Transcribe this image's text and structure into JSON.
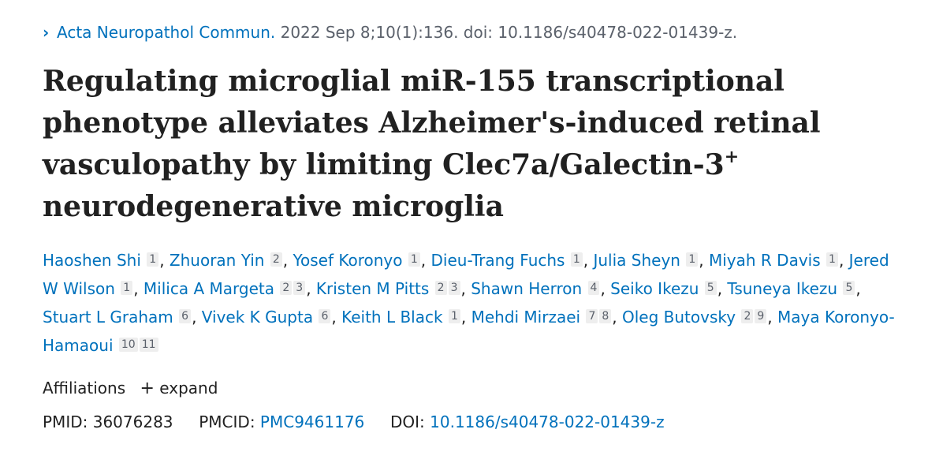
{
  "citation": {
    "journal": "Acta Neuropathol Commun.",
    "details": "2022 Sep 8;10(1):136. doi: 10.1186/s40478-022-01439-z."
  },
  "title": {
    "line1": "Regulating microglial miR-155 transcriptional",
    "line2": "phenotype alleviates Alzheimer's-induced retinal",
    "line3": "vasculopathy by limiting Clec7a/Galectin-3",
    "sup": "+",
    "line4": "neurodegenerative microglia"
  },
  "authors": [
    {
      "name": "Haoshen Shi",
      "refs": [
        "1"
      ]
    },
    {
      "name": "Zhuoran Yin",
      "refs": [
        "2"
      ]
    },
    {
      "name": "Yosef Koronyo",
      "refs": [
        "1"
      ]
    },
    {
      "name": "Dieu-Trang Fuchs",
      "refs": [
        "1"
      ]
    },
    {
      "name": "Julia Sheyn",
      "refs": [
        "1"
      ]
    },
    {
      "name": "Miyah R Davis",
      "refs": [
        "1"
      ]
    },
    {
      "name": "Jered W Wilson",
      "refs": [
        "1"
      ]
    },
    {
      "name": "Milica A Margeta",
      "refs": [
        "2",
        "3"
      ]
    },
    {
      "name": "Kristen M Pitts",
      "refs": [
        "2",
        "3"
      ]
    },
    {
      "name": "Shawn Herron",
      "refs": [
        "4"
      ]
    },
    {
      "name": "Seiko Ikezu",
      "refs": [
        "5"
      ]
    },
    {
      "name": "Tsuneya Ikezu",
      "refs": [
        "5"
      ]
    },
    {
      "name": "Stuart L Graham",
      "refs": [
        "6"
      ]
    },
    {
      "name": "Vivek K Gupta",
      "refs": [
        "6"
      ]
    },
    {
      "name": "Keith L Black",
      "refs": [
        "1"
      ]
    },
    {
      "name": "Mehdi Mirzaei",
      "refs": [
        "7",
        "8"
      ]
    },
    {
      "name": "Oleg Butovsky",
      "refs": [
        "2",
        "9"
      ]
    },
    {
      "name": "Maya Koronyo-Hamaoui",
      "refs": [
        "10",
        "11"
      ]
    }
  ],
  "affiliations": {
    "label": "Affiliations",
    "toggle_symbol": "+",
    "toggle_label": "expand"
  },
  "identifiers": {
    "pmid_label": "PMID:",
    "pmid": "36076283",
    "pmcid_label": "PMCID:",
    "pmcid": "PMC9461176",
    "doi_label": "DOI:",
    "doi": "10.1186/s40478-022-01439-z"
  },
  "colors": {
    "link": "#0071bc",
    "text": "#212121",
    "muted": "#5b616b",
    "ref_bg": "#eeeeee"
  },
  "icons": {
    "citation_chevron": "chevron-right-icon",
    "expand": "plus-icon"
  }
}
